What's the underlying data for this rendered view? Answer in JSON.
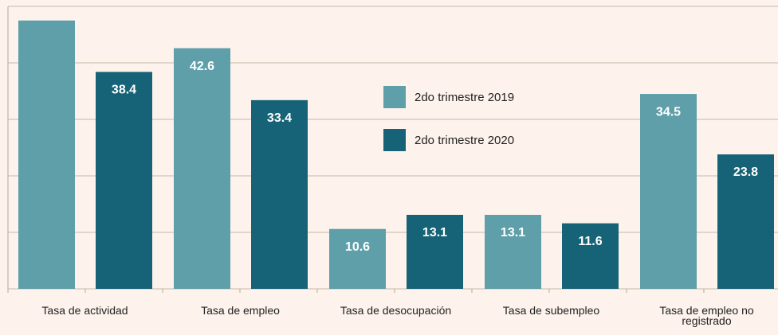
{
  "chart_data": {
    "type": "bar",
    "categories": [
      "Tasa de actividad",
      "Tasa de empleo",
      "Tasa de desocupación",
      "Tasa de subempleo",
      "Tasa de empleo no registrado"
    ],
    "series": [
      {
        "name": "2do trimestre 2019",
        "color": "#5f9fa9",
        "values": [
          47.5,
          42.6,
          10.6,
          13.1,
          34.5
        ],
        "value_labels": [
          null,
          "42.6",
          "10.6",
          "13.1",
          "34.5"
        ]
      },
      {
        "name": "2do trimestre 2020",
        "color": "#166276",
        "values": [
          38.4,
          33.4,
          13.1,
          11.6,
          23.8
        ],
        "value_labels": [
          "38.4",
          "33.4",
          "13.1",
          "11.6",
          "23.8"
        ]
      }
    ],
    "ylim": [
      0,
      50
    ],
    "yticks": [
      0,
      10,
      20,
      30,
      40,
      50
    ],
    "grid": true,
    "legend": "top center"
  }
}
